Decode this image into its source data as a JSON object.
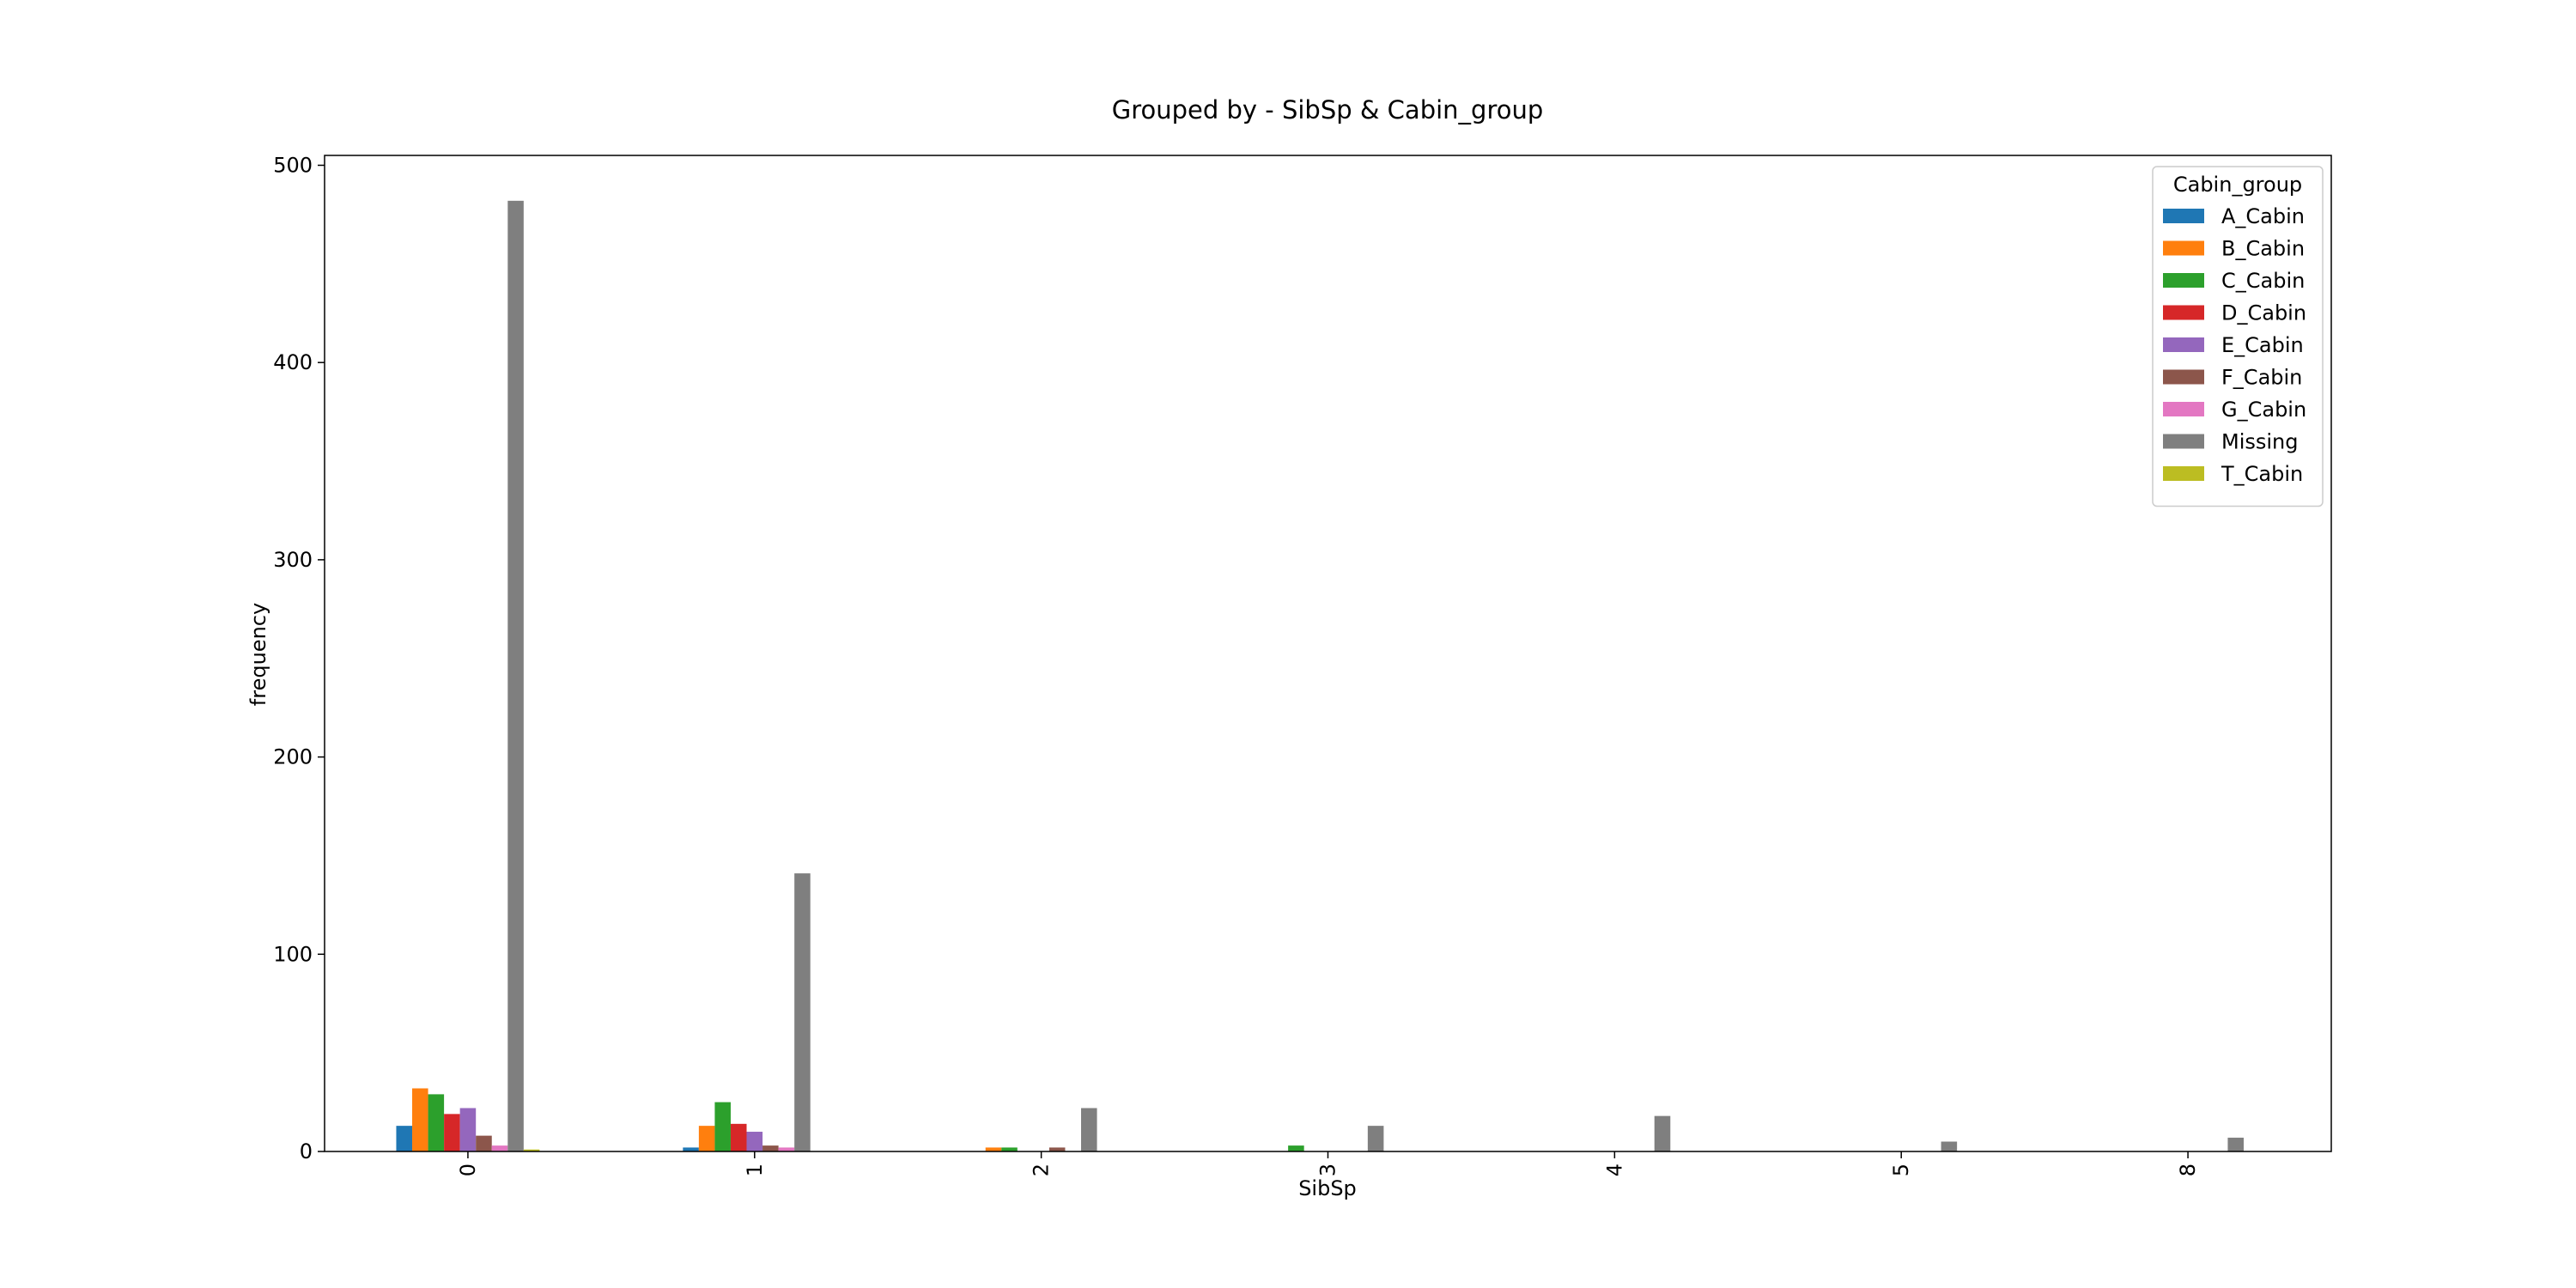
{
  "chart_data": {
    "type": "bar",
    "title": "Grouped by - SibSp & Cabin_group",
    "xlabel": "SibSp",
    "ylabel": "frequency",
    "categories": [
      "0",
      "1",
      "2",
      "3",
      "4",
      "5",
      "8"
    ],
    "ylim": [
      0,
      505
    ],
    "yticks": [
      0,
      100,
      200,
      300,
      400,
      500
    ],
    "legend_title": "Cabin_group",
    "legend_position": "top-right",
    "grid": false,
    "series": [
      {
        "name": "A_Cabin",
        "color": "#1f77b4",
        "values": [
          13,
          2,
          0,
          0,
          0,
          0,
          0
        ]
      },
      {
        "name": "B_Cabin",
        "color": "#ff7f0e",
        "values": [
          32,
          13,
          2,
          0,
          0,
          0,
          0
        ]
      },
      {
        "name": "C_Cabin",
        "color": "#2ca02c",
        "values": [
          29,
          25,
          2,
          3,
          0,
          0,
          0
        ]
      },
      {
        "name": "D_Cabin",
        "color": "#d62728",
        "values": [
          19,
          14,
          0,
          0,
          0,
          0,
          0
        ]
      },
      {
        "name": "E_Cabin",
        "color": "#9467bd",
        "values": [
          22,
          10,
          0,
          0,
          0,
          0,
          0
        ]
      },
      {
        "name": "F_Cabin",
        "color": "#8c564b",
        "values": [
          8,
          3,
          2,
          0,
          0,
          0,
          0
        ]
      },
      {
        "name": "G_Cabin",
        "color": "#e377c2",
        "values": [
          3,
          2,
          0,
          0,
          0,
          0,
          0
        ]
      },
      {
        "name": "Missing",
        "color": "#7f7f7f",
        "values": [
          482,
          141,
          22,
          13,
          18,
          5,
          7
        ]
      },
      {
        "name": "T_Cabin",
        "color": "#bcbd22",
        "values": [
          1,
          0,
          0,
          0,
          0,
          0,
          0
        ]
      }
    ]
  }
}
